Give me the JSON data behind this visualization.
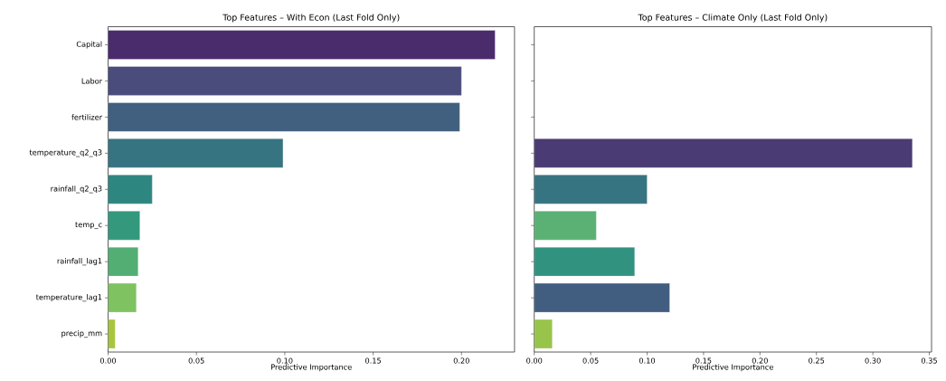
{
  "chart_data": [
    {
      "type": "bar",
      "orientation": "horizontal",
      "title": "Top Features – With Econ (Last Fold Only)",
      "xlabel": "Predictive Importance",
      "categories": [
        "Capital",
        "Labor",
        "fertilizer",
        "temperature_q2_q3",
        "rainfall_q2_q3",
        "temp_c",
        "rainfall_lag1",
        "temperature_lag1",
        "precip_mm"
      ],
      "values": [
        0.219,
        0.2,
        0.199,
        0.099,
        0.025,
        0.018,
        0.017,
        0.016,
        0.004
      ],
      "colors": [
        "#4a2c6c",
        "#4a4c7c",
        "#41607f",
        "#377482",
        "#2e8680",
        "#34997c",
        "#52ae72",
        "#7fc262",
        "#a8c43c"
      ],
      "xlim": [
        0,
        0.23
      ],
      "xticks": [
        {
          "value": 0,
          "label": "0.00"
        },
        0.05,
        {
          "value": 0.1,
          "label": "0.10"
        },
        0.15,
        {
          "value": 0.2,
          "label": "0.20"
        }
      ]
    },
    {
      "type": "bar",
      "orientation": "horizontal",
      "title": "Top Features – Climate Only (Last Fold Only)",
      "xlabel": "Predictive Importance",
      "categories": [
        null,
        null,
        null,
        null,
        null,
        null,
        null,
        null,
        null
      ],
      "values": [
        null,
        null,
        null,
        0.335,
        0.1,
        0.055,
        0.089,
        0.12,
        0.016
      ],
      "colors": [
        "#4a3b74",
        "#4a3b74",
        "#4a3b74",
        "#4a3b74",
        "#377481",
        "#5ab173",
        "#31937f",
        "#415e80",
        "#99c44c"
      ],
      "xlim": [
        0,
        0.352
      ],
      "xticks": [
        {
          "value": 0,
          "label": "0.00"
        },
        0.05,
        {
          "value": 0.1,
          "label": "0.10"
        },
        0.15,
        {
          "value": 0.2,
          "label": "0.20"
        },
        0.25,
        {
          "value": 0.3,
          "label": "0.30"
        },
        0.35
      ],
      "tick_labels": "x"
    }
  ]
}
